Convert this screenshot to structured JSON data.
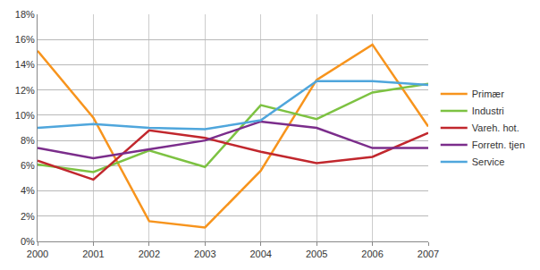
{
  "chart_data": {
    "type": "line",
    "categories": [
      "2000",
      "2001",
      "2002",
      "2003",
      "2004",
      "2005",
      "2006",
      "2007"
    ],
    "series": [
      {
        "name": "Primær",
        "color": "#f7941d",
        "values": [
          15.1,
          9.8,
          1.6,
          1.1,
          5.6,
          12.8,
          15.6,
          9.1
        ]
      },
      {
        "name": "Industri",
        "color": "#7dc242",
        "values": [
          6.1,
          5.5,
          7.2,
          5.9,
          10.8,
          9.7,
          11.8,
          12.5
        ]
      },
      {
        "name": "Vareh. hot.",
        "color": "#c1272d",
        "values": [
          6.4,
          4.9,
          8.8,
          8.2,
          7.1,
          6.2,
          6.7,
          8.6
        ]
      },
      {
        "name": "Forretn. tjen",
        "color": "#7b2d8b",
        "values": [
          7.4,
          6.6,
          7.3,
          8.0,
          9.5,
          9.0,
          7.4,
          7.4
        ]
      },
      {
        "name": "Service",
        "color": "#4fa6dc",
        "values": [
          9.0,
          9.3,
          9.0,
          8.9,
          9.6,
          12.7,
          12.7,
          12.4
        ]
      }
    ],
    "ylim": [
      0,
      18
    ],
    "yticks": [
      {
        "value": 0,
        "label": "0%"
      },
      {
        "value": 2,
        "label": "2%"
      },
      {
        "value": 4,
        "label": "4%"
      },
      {
        "value": 6,
        "label": "6%"
      },
      {
        "value": 8,
        "label": "8%"
      },
      {
        "value": 10,
        "label": "10%"
      },
      {
        "value": 12,
        "label": "12%"
      },
      {
        "value": 14,
        "label": "14%"
      },
      {
        "value": 16,
        "label": "16%"
      },
      {
        "value": 18,
        "label": "18%"
      }
    ],
    "grid": true,
    "legend": "right"
  }
}
